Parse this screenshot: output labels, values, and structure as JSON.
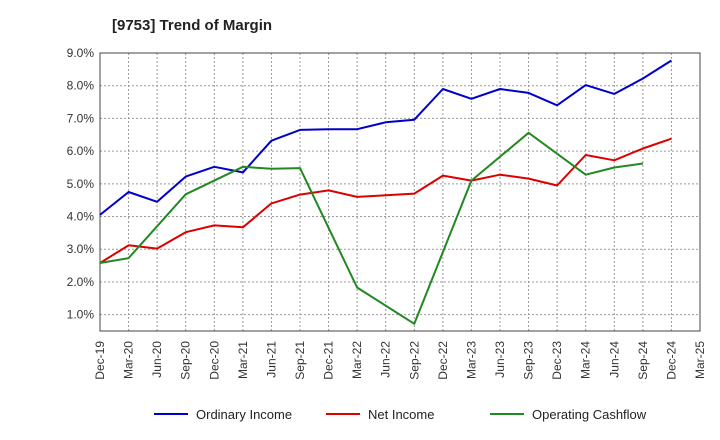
{
  "chart_data": {
    "type": "line",
    "title": "[9753]  Trend of Margin",
    "xlabel": "",
    "ylabel": "",
    "ylim": [
      0.5,
      9.0
    ],
    "y_ticks": [
      "1.0%",
      "2.0%",
      "3.0%",
      "4.0%",
      "5.0%",
      "6.0%",
      "7.0%",
      "8.0%",
      "9.0%"
    ],
    "y_tick_values": [
      1,
      2,
      3,
      4,
      5,
      6,
      7,
      8,
      9
    ],
    "categories": [
      "Dec-19",
      "Mar-20",
      "Jun-20",
      "Sep-20",
      "Dec-20",
      "Mar-21",
      "Jun-21",
      "Sep-21",
      "Dec-21",
      "Mar-22",
      "Jun-22",
      "Sep-22",
      "Dec-22",
      "Mar-23",
      "Jun-23",
      "Sep-23",
      "Dec-23",
      "Mar-24",
      "Jun-24",
      "Sep-24",
      "Dec-24",
      "Mar-25"
    ],
    "grid": true,
    "legend_position": "bottom",
    "series": [
      {
        "name": "Ordinary Income",
        "color": "#0000cc",
        "values": [
          4.05,
          4.75,
          4.45,
          5.22,
          5.52,
          5.35,
          6.32,
          6.65,
          6.67,
          6.67,
          6.88,
          6.96,
          7.9,
          7.6,
          7.9,
          7.78,
          7.4,
          8.02,
          7.75,
          8.22,
          8.77,
          null
        ]
      },
      {
        "name": "Net Income",
        "color": "#dd0000",
        "values": [
          2.58,
          3.12,
          3.02,
          3.52,
          3.73,
          3.67,
          4.4,
          4.67,
          4.8,
          4.6,
          4.65,
          4.7,
          5.25,
          5.1,
          5.28,
          5.16,
          4.95,
          5.88,
          5.72,
          6.08,
          6.38,
          null
        ]
      },
      {
        "name": "Operating Cashflow",
        "color": "#228822",
        "values": [
          2.58,
          2.73,
          null,
          4.68,
          null,
          5.52,
          5.46,
          5.48,
          null,
          1.83,
          null,
          0.72,
          null,
          5.1,
          null,
          6.56,
          null,
          5.28,
          5.5,
          5.62,
          null,
          null
        ]
      }
    ]
  }
}
